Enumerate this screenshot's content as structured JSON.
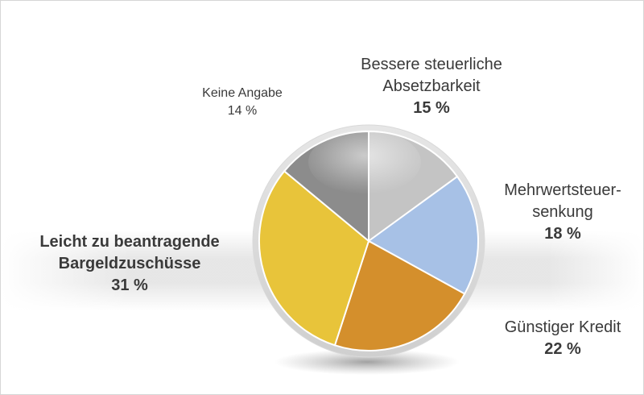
{
  "chart_data": {
    "type": "pie",
    "title": "",
    "start_angle_deg": 0,
    "direction": "clockwise",
    "slices": [
      {
        "label": "Bessere steuerliche Absetzbarkeit",
        "label_lines": [
          "Bessere steuerliche",
          "Absetzbarkeit"
        ],
        "value": 15,
        "display": "15 %",
        "color": "#c4c4c4",
        "bold": false
      },
      {
        "label": "Mehrwertsteuer-senkung",
        "label_lines": [
          "Mehrwertsteuer-",
          "senkung"
        ],
        "value": 18,
        "display": "18 %",
        "color": "#a7c1e6",
        "bold": false
      },
      {
        "label": "Günstiger Kredit",
        "label_lines": [
          "Günstiger Kredit"
        ],
        "value": 22,
        "display": "22 %",
        "color": "#d48f2c",
        "bold": false
      },
      {
        "label": "Leicht zu beantragende Bargeldzuschüsse",
        "label_lines": [
          "Leicht zu beantragende",
          "Bargeldzuschüsse"
        ],
        "value": 31,
        "display": "31 %",
        "color": "#e8c43a",
        "bold": true
      },
      {
        "label": "Keine Angabe",
        "label_lines": [
          "Keine Angabe"
        ],
        "value": 14,
        "display": "14 %",
        "color": "#8c8c8c",
        "bold": false
      }
    ]
  }
}
